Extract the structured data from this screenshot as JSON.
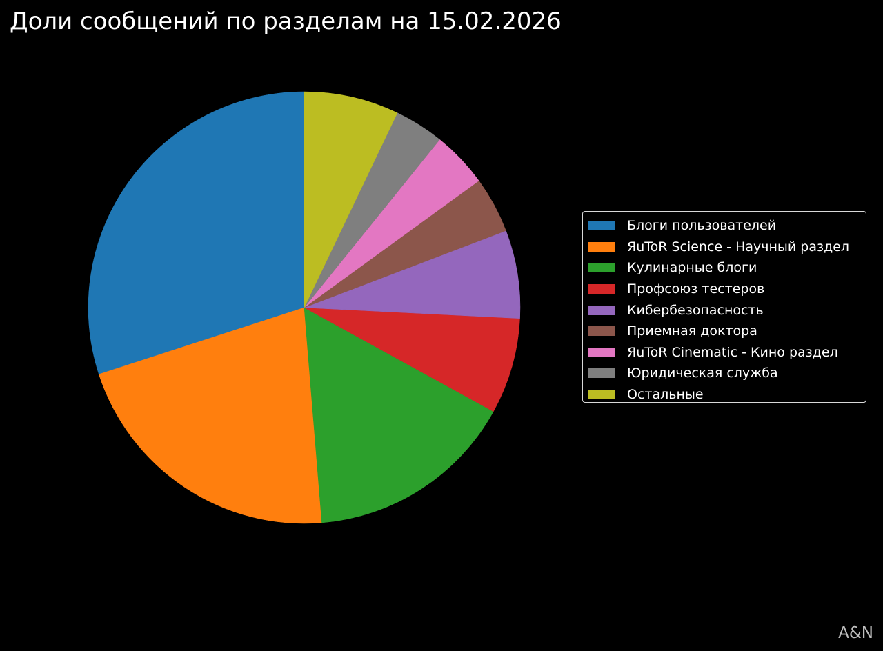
{
  "chart_data": {
    "type": "pie",
    "title": "Доли сообщений по разделам на 15.02.2026",
    "start_angle_deg": 90,
    "direction": "counterclockwise",
    "legend_position": "right",
    "categories": [
      "Блоги пользователей",
      "ЯuToR Science - Научный раздел",
      "Кулинарные блоги",
      "Профсоюз тестеров",
      "Кибербезопасность",
      "Приемная доктора",
      "ЯuToR Cinematic - Кино раздел",
      "Юридическая служба",
      "Остальные"
    ],
    "values": [
      30.0,
      21.3,
      15.7,
      7.2,
      6.6,
      4.2,
      4.2,
      3.7,
      7.1
    ],
    "colors": [
      "#1f77b4",
      "#ff7f0e",
      "#2ca02c",
      "#d62728",
      "#9467bd",
      "#8c564b",
      "#e377c2",
      "#7f7f7f",
      "#bcbd22"
    ]
  },
  "watermark": "A&N"
}
